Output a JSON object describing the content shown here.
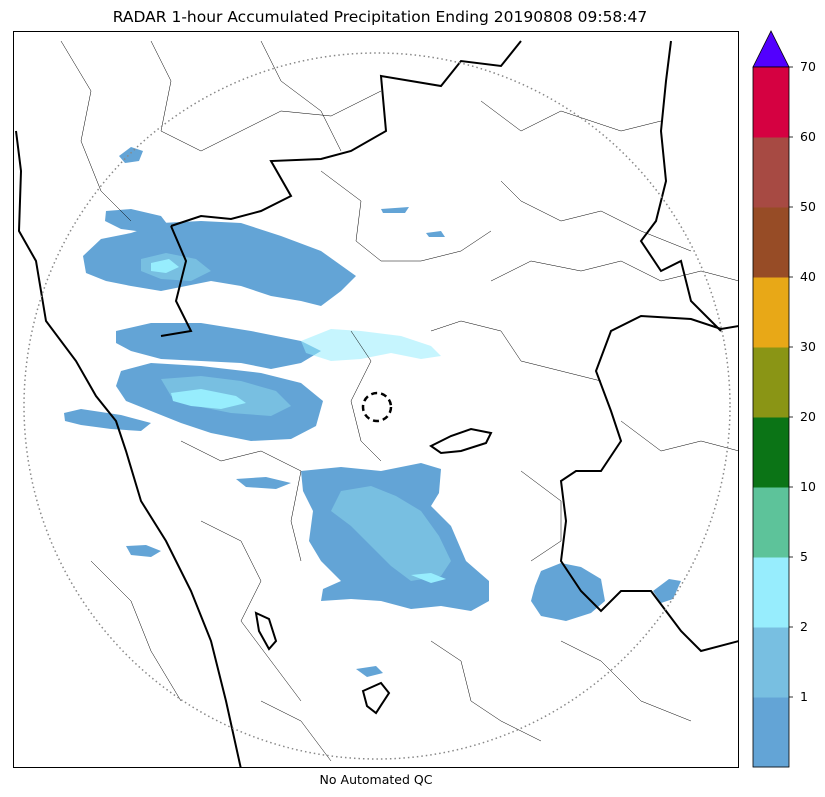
{
  "title": "RADAR 1-hour Accumulated Precipitation Ending 20190808 09:58:47",
  "footnote": "No Automated QC",
  "colorbar": {
    "ticks": [
      "1",
      "2",
      "5",
      "10",
      "20",
      "30",
      "40",
      "50",
      "60",
      "70"
    ],
    "bands": [
      {
        "label": "0-1",
        "color": "#63a4d6"
      },
      {
        "label": "1-2",
        "color": "#78bfe1"
      },
      {
        "label": "2-5",
        "color": "#97edfd"
      },
      {
        "label": "5-10",
        "color": "#5dc39a"
      },
      {
        "label": "10-20",
        "color": "#0b7416"
      },
      {
        "label": "20-30",
        "color": "#8a9515"
      },
      {
        "label": "30-40",
        "color": "#e8a817"
      },
      {
        "label": "40-50",
        "color": "#974c26"
      },
      {
        "label": "50-60",
        "color": "#a74a43"
      },
      {
        "label": "60-70",
        "color": "#d50141"
      },
      {
        "label": ">70",
        "color": "#5200fe"
      }
    ]
  },
  "map": {
    "radar_range_ring": "dotted-gray",
    "radar_site_marker": "dashed-black-circle",
    "boundary_color": "#000000"
  }
}
